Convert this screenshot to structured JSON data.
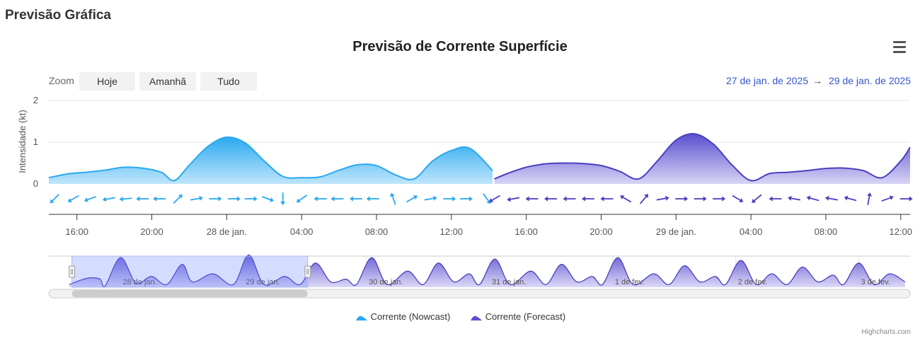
{
  "page": {
    "title": "Previsão Gráfica"
  },
  "chart_data": {
    "type": "area",
    "title": "Previsão de Corrente Superfície",
    "ylabel": "Intensidade (kt)",
    "ylim": [
      0,
      2
    ],
    "y_ticks": [
      "0",
      "1",
      "2"
    ],
    "x_ticks": [
      "16:00",
      "20:00",
      "28 de jan.",
      "04:00",
      "08:00",
      "12:00",
      "16:00",
      "20:00",
      "29 de jan.",
      "04:00",
      "08:00",
      "12:00"
    ],
    "x_tick_hours": [
      16,
      20,
      24,
      28,
      32,
      36,
      40,
      44,
      48,
      52,
      56,
      60
    ],
    "x_range_hours": [
      14.5,
      60.5
    ],
    "grid": true,
    "legend_position": "bottom-center",
    "series": [
      {
        "name": "Corrente (Nowcast)",
        "color": "#2aa9f0",
        "hours": [
          14.5,
          15.5,
          16.5,
          17.5,
          18.5,
          19.5,
          20.5,
          21.2,
          22,
          23,
          24,
          25,
          26,
          27,
          28,
          29,
          30,
          31,
          32,
          33,
          34,
          35,
          36,
          37,
          38.2
        ],
        "values": [
          0.15,
          0.24,
          0.28,
          0.33,
          0.4,
          0.38,
          0.28,
          0.08,
          0.45,
          0.9,
          1.12,
          0.98,
          0.55,
          0.18,
          0.15,
          0.17,
          0.33,
          0.46,
          0.44,
          0.22,
          0.12,
          0.55,
          0.8,
          0.85,
          0.32
        ]
      },
      {
        "name": "Corrente (Forecast)",
        "color": "#5a4fcf",
        "hours": [
          38.3,
          39,
          40,
          41,
          42,
          43,
          44,
          45,
          46,
          47,
          48,
          49,
          50,
          51,
          52,
          53,
          54,
          55,
          56,
          57,
          58,
          59,
          60,
          60.5
        ],
        "values": [
          0.12,
          0.25,
          0.4,
          0.48,
          0.5,
          0.49,
          0.44,
          0.3,
          0.12,
          0.55,
          1.05,
          1.2,
          0.95,
          0.45,
          0.08,
          0.25,
          0.28,
          0.32,
          0.37,
          0.38,
          0.32,
          0.15,
          0.55,
          0.88
        ]
      }
    ],
    "direction_arrows": [
      {
        "h": 14.8,
        "deg": 225,
        "s": "nowcast"
      },
      {
        "h": 15.8,
        "deg": 240,
        "s": "nowcast"
      },
      {
        "h": 16.7,
        "deg": 250,
        "s": "nowcast"
      },
      {
        "h": 17.7,
        "deg": 260,
        "s": "nowcast"
      },
      {
        "h": 18.6,
        "deg": 265,
        "s": "nowcast"
      },
      {
        "h": 19.5,
        "deg": 270,
        "s": "nowcast"
      },
      {
        "h": 20.4,
        "deg": 270,
        "s": "nowcast"
      },
      {
        "h": 21.4,
        "deg": 45,
        "s": "nowcast"
      },
      {
        "h": 22.4,
        "deg": 80,
        "s": "nowcast"
      },
      {
        "h": 23.4,
        "deg": 90,
        "s": "nowcast"
      },
      {
        "h": 24.4,
        "deg": 90,
        "s": "nowcast"
      },
      {
        "h": 25.3,
        "deg": 90,
        "s": "nowcast"
      },
      {
        "h": 26.2,
        "deg": 110,
        "s": "nowcast"
      },
      {
        "h": 27.0,
        "deg": 180,
        "s": "nowcast"
      },
      {
        "h": 28.0,
        "deg": 235,
        "s": "nowcast"
      },
      {
        "h": 29.0,
        "deg": 270,
        "s": "nowcast"
      },
      {
        "h": 29.9,
        "deg": 270,
        "s": "nowcast"
      },
      {
        "h": 30.9,
        "deg": 270,
        "s": "nowcast"
      },
      {
        "h": 31.8,
        "deg": 270,
        "s": "nowcast"
      },
      {
        "h": 32.9,
        "deg": 340,
        "s": "nowcast"
      },
      {
        "h": 33.9,
        "deg": 60,
        "s": "nowcast"
      },
      {
        "h": 34.9,
        "deg": 80,
        "s": "nowcast"
      },
      {
        "h": 35.9,
        "deg": 90,
        "s": "nowcast"
      },
      {
        "h": 36.8,
        "deg": 90,
        "s": "nowcast"
      },
      {
        "h": 37.9,
        "deg": 145,
        "s": "nowcast"
      },
      {
        "h": 38.3,
        "deg": 240,
        "s": "forecast"
      },
      {
        "h": 39.3,
        "deg": 260,
        "s": "forecast"
      },
      {
        "h": 40.3,
        "deg": 270,
        "s": "forecast"
      },
      {
        "h": 41.3,
        "deg": 270,
        "s": "forecast"
      },
      {
        "h": 42.3,
        "deg": 270,
        "s": "forecast"
      },
      {
        "h": 43.3,
        "deg": 270,
        "s": "forecast"
      },
      {
        "h": 44.3,
        "deg": 270,
        "s": "forecast"
      },
      {
        "h": 45.3,
        "deg": 300,
        "s": "forecast"
      },
      {
        "h": 46.3,
        "deg": 40,
        "s": "forecast"
      },
      {
        "h": 47.3,
        "deg": 80,
        "s": "forecast"
      },
      {
        "h": 48.3,
        "deg": 90,
        "s": "forecast"
      },
      {
        "h": 49.3,
        "deg": 90,
        "s": "forecast"
      },
      {
        "h": 50.3,
        "deg": 90,
        "s": "forecast"
      },
      {
        "h": 51.3,
        "deg": 120,
        "s": "forecast"
      },
      {
        "h": 52.3,
        "deg": 230,
        "s": "forecast"
      },
      {
        "h": 53.3,
        "deg": 270,
        "s": "forecast"
      },
      {
        "h": 54.3,
        "deg": 280,
        "s": "forecast"
      },
      {
        "h": 55.3,
        "deg": 285,
        "s": "forecast"
      },
      {
        "h": 56.3,
        "deg": 280,
        "s": "forecast"
      },
      {
        "h": 57.3,
        "deg": 285,
        "s": "forecast"
      },
      {
        "h": 58.3,
        "deg": 10,
        "s": "forecast"
      },
      {
        "h": 59.3,
        "deg": 70,
        "s": "forecast"
      },
      {
        "h": 60.3,
        "deg": 90,
        "s": "forecast"
      }
    ],
    "navigator": {
      "labels": [
        "28 de jan.",
        "29 de jan.",
        "30 de jan.",
        "31 de jan.",
        "1 de fev.",
        "2 de fev.",
        "3 de fev."
      ],
      "label_hours": [
        24,
        48,
        72,
        96,
        120,
        144,
        168
      ],
      "range_hours": [
        10,
        178
      ],
      "selected_hours": [
        14.5,
        60.5
      ],
      "now_hours": 38.2,
      "peaks": [
        [
          14,
          0.1
        ],
        [
          16,
          0.25
        ],
        [
          18,
          0.35
        ],
        [
          20,
          0.3
        ],
        [
          21,
          0.05
        ],
        [
          24,
          1.1
        ],
        [
          27,
          0.15
        ],
        [
          30,
          0.4
        ],
        [
          33,
          0.1
        ],
        [
          36,
          0.85
        ],
        [
          38,
          0.2
        ],
        [
          42,
          0.5
        ],
        [
          46,
          0.1
        ],
        [
          49,
          1.2
        ],
        [
          52,
          0.1
        ],
        [
          56,
          0.4
        ],
        [
          59,
          0.1
        ],
        [
          62,
          0.9
        ],
        [
          65,
          0.2
        ],
        [
          68,
          0.3
        ],
        [
          70,
          0.1
        ],
        [
          73,
          1.1
        ],
        [
          76,
          0.1
        ],
        [
          80,
          0.6
        ],
        [
          83,
          0.1
        ],
        [
          86,
          0.9
        ],
        [
          89,
          0.2
        ],
        [
          92,
          0.5
        ],
        [
          94,
          0.1
        ],
        [
          97,
          1.05
        ],
        [
          100,
          0.1
        ],
        [
          104,
          0.6
        ],
        [
          107,
          0.1
        ],
        [
          110,
          0.85
        ],
        [
          113,
          0.2
        ],
        [
          116,
          0.4
        ],
        [
          118,
          0.1
        ],
        [
          121,
          1.1
        ],
        [
          124,
          0.1
        ],
        [
          128,
          0.5
        ],
        [
          131,
          0.1
        ],
        [
          134,
          0.8
        ],
        [
          137,
          0.2
        ],
        [
          140,
          0.4
        ],
        [
          142,
          0.1
        ],
        [
          145,
          1.0
        ],
        [
          148,
          0.1
        ],
        [
          151,
          0.5
        ],
        [
          154,
          0.1
        ],
        [
          157,
          0.75
        ],
        [
          160,
          0.2
        ],
        [
          163,
          0.45
        ],
        [
          165,
          0.1
        ],
        [
          168,
          0.9
        ],
        [
          171,
          0.1
        ],
        [
          174,
          0.5
        ],
        [
          177,
          0.2
        ]
      ]
    }
  },
  "zoom": {
    "label": "Zoom",
    "buttons": [
      "Hoje",
      "Amanhã",
      "Tudo"
    ]
  },
  "range": {
    "from": "27 de jan. de 2025",
    "arrow": "→",
    "to": "29 de jan. de 2025"
  },
  "credits": "Highcharts.com",
  "icons": {
    "menu": "hamburger-menu-icon"
  }
}
